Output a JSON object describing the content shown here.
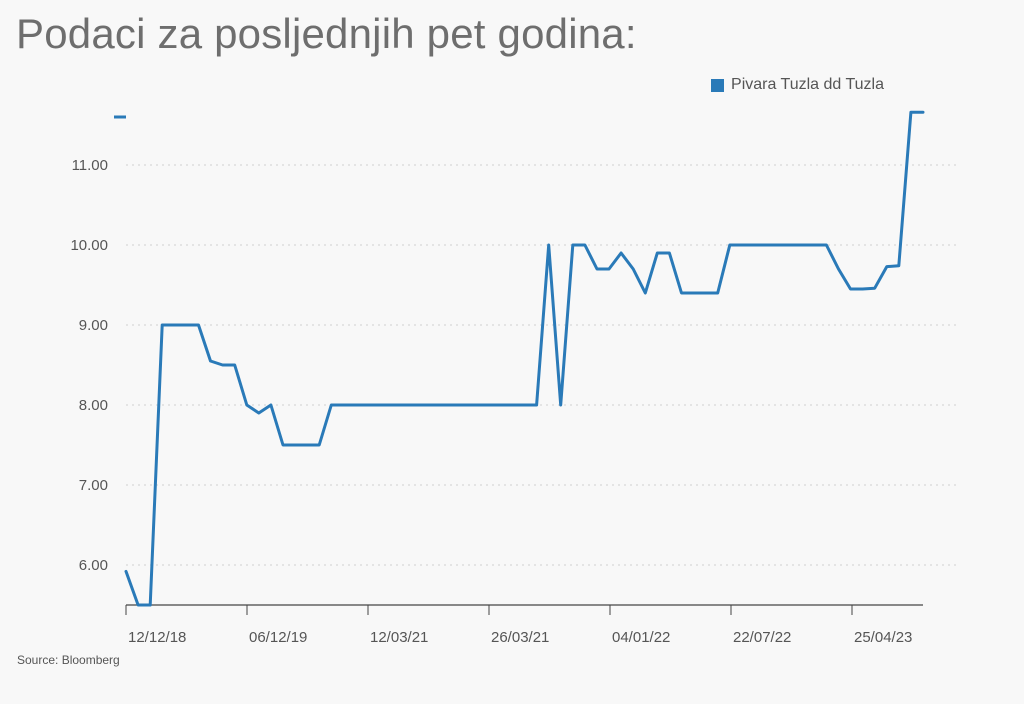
{
  "title": "Podaci za posljednjih pet godina:",
  "source": "Source: Bloomberg",
  "colors": {
    "line": "#2a7ab8",
    "grid": "#d0d0d0",
    "axis": "#444444",
    "text": "#555555",
    "title": "#6e6e6e"
  },
  "chart_data": {
    "type": "line",
    "title": "",
    "xlabel": "",
    "ylabel": "",
    "ylim": [
      5.5,
      11.6
    ],
    "y_ticks": [
      "6.00",
      "7.00",
      "8.00",
      "9.00",
      "10.00",
      "11.00"
    ],
    "x_ticks": [
      "12/12/18",
      "06/12/19",
      "12/03/21",
      "26/03/21",
      "04/01/22",
      "22/07/22",
      "25/04/23"
    ],
    "grid": true,
    "legend_position": "top-right",
    "series": [
      {
        "name": "Pivara Tuzla dd Tuzla",
        "x": [
          0,
          1,
          2,
          3,
          4,
          5,
          6,
          7,
          8,
          9,
          10,
          11,
          12,
          13,
          14,
          15,
          16,
          17,
          18,
          19,
          20,
          21,
          22,
          23,
          24,
          25,
          26,
          27,
          28,
          29,
          30,
          31,
          32,
          33,
          34,
          35,
          36,
          37,
          38,
          39,
          40,
          41,
          42,
          43,
          44,
          45,
          46,
          47,
          48,
          49,
          50,
          51,
          52,
          53,
          54,
          55,
          56,
          57,
          58,
          59,
          60,
          61,
          62,
          63,
          64,
          65,
          66
        ],
        "values": [
          5.92,
          5.5,
          5.5,
          9.0,
          9.0,
          9.0,
          9.0,
          8.55,
          8.5,
          8.5,
          8.0,
          7.9,
          8.0,
          7.5,
          7.5,
          7.5,
          7.5,
          8.0,
          8.0,
          8.0,
          8.0,
          8.0,
          8.0,
          8.0,
          8.0,
          8.0,
          8.0,
          8.0,
          8.0,
          8.0,
          8.0,
          8.0,
          8.0,
          8.0,
          8.0,
          10.0,
          8.0,
          10.0,
          10.0,
          9.7,
          9.7,
          9.9,
          9.7,
          9.4,
          9.9,
          9.9,
          9.4,
          9.4,
          9.4,
          9.4,
          10.0,
          10.0,
          10.0,
          10.0,
          10.0,
          10.0,
          10.0,
          10.0,
          10.0,
          9.7,
          9.45,
          9.45,
          9.46,
          9.73,
          9.74,
          11.66,
          11.66
        ]
      }
    ]
  }
}
